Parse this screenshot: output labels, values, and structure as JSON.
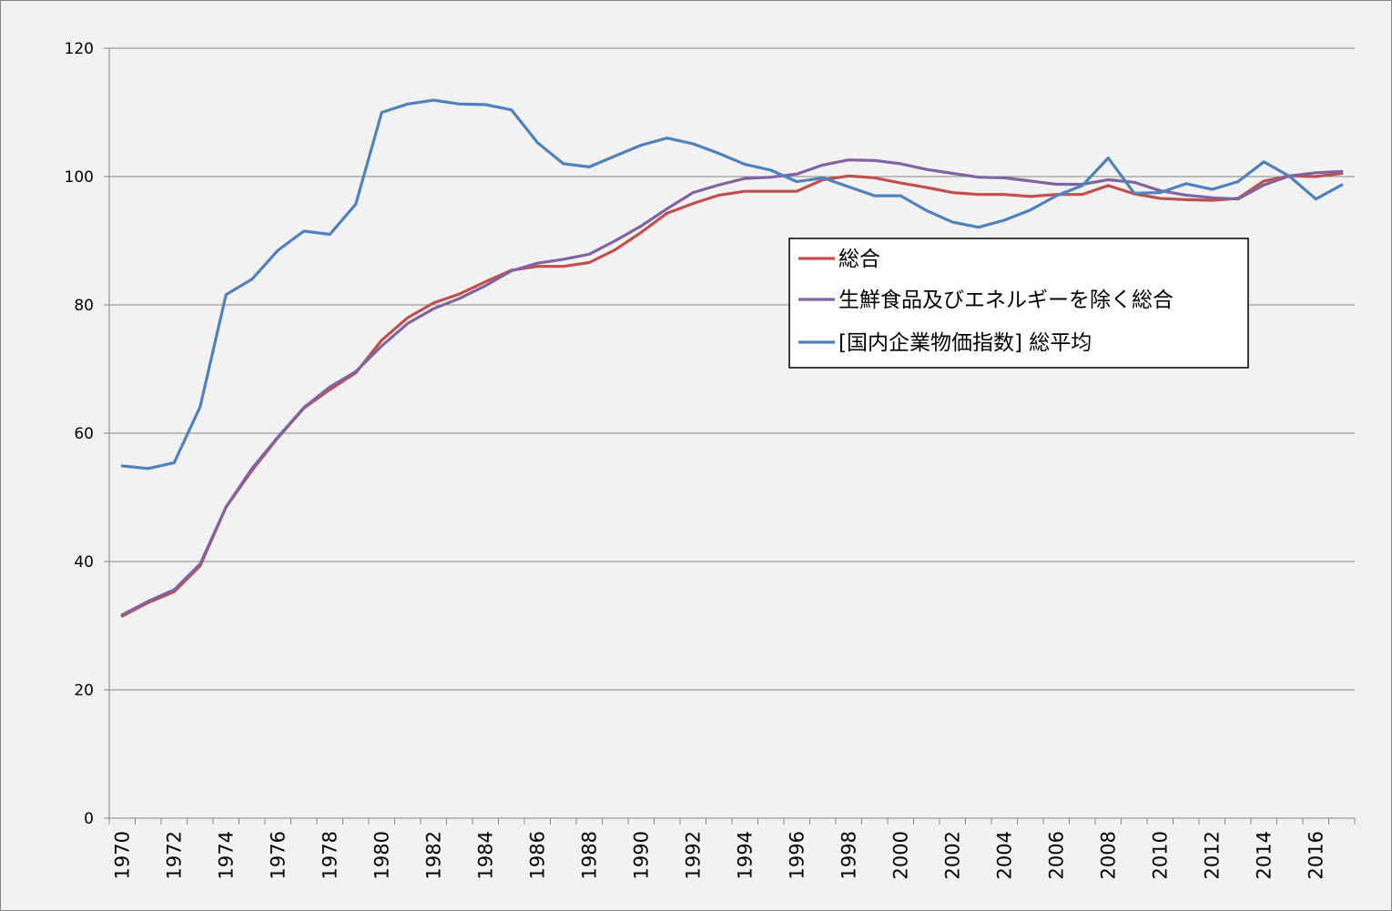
{
  "chart_data": {
    "type": "line",
    "title": "",
    "xlabel": "",
    "ylabel": "",
    "ylim": [
      0,
      120
    ],
    "y_ticks": [
      0,
      20,
      40,
      60,
      80,
      100,
      120
    ],
    "x_tick_labels": [
      "1970",
      "1972",
      "1974",
      "1976",
      "1978",
      "1980",
      "1982",
      "1984",
      "1986",
      "1988",
      "1990",
      "1992",
      "1994",
      "1996",
      "1998",
      "2000",
      "2002",
      "2004",
      "2006",
      "2008",
      "2010",
      "2012",
      "2014",
      "2016"
    ],
    "x": [
      1970,
      1971,
      1972,
      1973,
      1974,
      1975,
      1976,
      1977,
      1978,
      1979,
      1980,
      1981,
      1982,
      1983,
      1984,
      1985,
      1986,
      1987,
      1988,
      1989,
      1990,
      1991,
      1992,
      1993,
      1994,
      1995,
      1996,
      1997,
      1998,
      1999,
      2000,
      2001,
      2002,
      2003,
      2004,
      2005,
      2006,
      2007,
      2008,
      2009,
      2010,
      2011,
      2012,
      2013,
      2014,
      2015,
      2016,
      2017
    ],
    "grid": true,
    "legend_position": "right",
    "series": [
      {
        "name": "総合",
        "color": "#c0504d",
        "values": [
          31.5,
          33.6,
          35.3,
          39.3,
          48.5,
          54.2,
          59.3,
          63.9,
          66.8,
          69.4,
          74.5,
          78.0,
          80.3,
          81.7,
          83.6,
          85.4,
          86.0,
          86.0,
          86.6,
          88.6,
          91.3,
          94.3,
          95.8,
          97.1,
          97.7,
          97.7,
          97.7,
          99.5,
          100.1,
          99.8,
          99.0,
          98.3,
          97.5,
          97.2,
          97.2,
          96.9,
          97.2,
          97.2,
          98.6,
          97.3,
          96.6,
          96.4,
          96.3,
          96.6,
          99.3,
          100.1,
          100.0,
          100.5
        ]
      },
      {
        "name": "生鮮食品及びエネルギーを除く総合",
        "color": "#8064a2",
        "values": [
          31.7,
          33.8,
          35.6,
          39.6,
          48.5,
          54.5,
          59.4,
          64.0,
          67.2,
          69.6,
          73.6,
          77.1,
          79.4,
          81.0,
          83.0,
          85.3,
          86.5,
          87.1,
          87.9,
          90.0,
          92.3,
          95.0,
          97.5,
          98.7,
          99.7,
          99.9,
          100.4,
          101.8,
          102.6,
          102.5,
          102.0,
          101.1,
          100.5,
          99.9,
          99.8,
          99.3,
          98.8,
          98.8,
          99.5,
          99.1,
          97.8,
          97.1,
          96.7,
          96.5,
          98.7,
          100.1,
          100.6,
          100.8
        ]
      },
      {
        "name": "[国内企業物価指数] 総平均",
        "color": "#4f81bd",
        "values": [
          54.9,
          54.5,
          55.4,
          64.1,
          81.6,
          84.0,
          88.5,
          91.5,
          91.0,
          95.7,
          110.0,
          111.3,
          111.9,
          111.3,
          111.2,
          110.4,
          105.3,
          102.0,
          101.5,
          103.2,
          104.9,
          106.0,
          105.1,
          103.6,
          101.9,
          101.0,
          99.2,
          99.8,
          98.4,
          97.0,
          97.0,
          94.7,
          92.9,
          92.1,
          93.2,
          94.8,
          97.0,
          98.6,
          102.9,
          97.4,
          97.5,
          98.9,
          98.0,
          99.2,
          102.3,
          100.0,
          96.5,
          98.7
        ]
      }
    ]
  }
}
